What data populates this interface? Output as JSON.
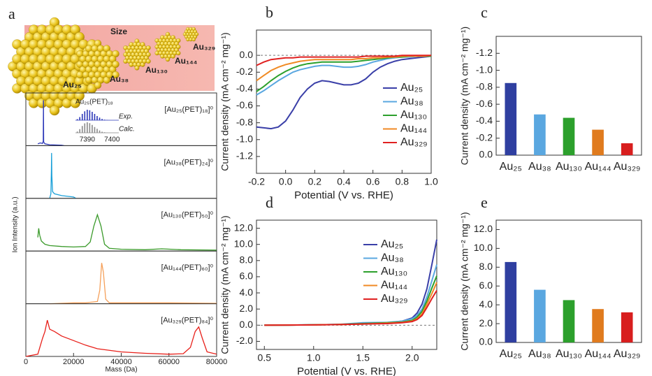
{
  "chart_data": [
    {
      "type": "spectra",
      "label": "a",
      "xlabel": "Mass (Da)",
      "ylabel": "Ion Intensity (a.u.)",
      "xlim": [
        0,
        80000
      ],
      "ylim": [
        0,
        1.1
      ],
      "xticks": [
        0,
        20000,
        40000,
        60000,
        80000
      ],
      "illustration": {
        "title": "Size",
        "labels": [
          "Au₂₅",
          "Au₃₈",
          "Au₁₃₀",
          "Au₁₄₄",
          "Au₃₂₉"
        ]
      },
      "inset": {
        "title": "Au₂₅(PET)₁₈",
        "xlim": [
          7383,
          7405
        ],
        "xticks": [
          7390,
          7400
        ],
        "x": [
          7386,
          7387,
          7388,
          7389,
          7390,
          7391,
          7392,
          7393,
          7394,
          7395,
          7396,
          7397,
          7398
        ],
        "series": [
          {
            "name": "Exp.",
            "color": "#2a36b8",
            "values": [
              0.1,
              0.3,
              0.6,
              0.85,
              1.0,
              0.95,
              0.8,
              0.6,
              0.4,
              0.25,
              0.12,
              0.05,
              0.02
            ]
          },
          {
            "name": "Calc.",
            "color": "#888888",
            "values": [
              0.12,
              0.35,
              0.65,
              0.9,
              1.0,
              0.92,
              0.75,
              0.55,
              0.38,
              0.22,
              0.1,
              0.05,
              0.02
            ]
          }
        ]
      },
      "panels": [
        {
          "name": "[Au₂₅(PET)₁₈]⁰",
          "color": "#2a36b8",
          "x": [
            5000,
            6000,
            7000,
            7300,
            7390,
            7480,
            8000,
            10000,
            15000,
            16000
          ],
          "values": [
            0.04,
            0.06,
            0.05,
            0.1,
            1.0,
            0.08,
            0.04,
            0.02,
            0.01,
            0
          ]
        },
        {
          "name": "[Au₃₈(PET)₂₄]⁰",
          "color": "#1aa0d8",
          "x": [
            10000,
            10500,
            10700,
            10780,
            10900,
            11200,
            12000,
            15000,
            20000,
            21000
          ],
          "values": [
            0,
            0.1,
            0.6,
            1.0,
            0.5,
            0.15,
            0.1,
            0.06,
            0.03,
            0
          ]
        },
        {
          "name": "[Au₁₃₀(PET)₅₀]⁰",
          "color": "#3a9a2a",
          "x": [
            5000,
            5400,
            5800,
            6500,
            8000,
            10000,
            15000,
            20000,
            25000,
            27000,
            28500,
            30000,
            31500,
            33000,
            35000,
            40000,
            50000,
            57000,
            65000,
            80000
          ],
          "values": [
            0.3,
            0.5,
            0.35,
            0.22,
            0.15,
            0.12,
            0.1,
            0.09,
            0.1,
            0.2,
            0.55,
            0.8,
            0.55,
            0.15,
            0.06,
            0.04,
            0.03,
            0.05,
            0.03,
            0.02
          ]
        },
        {
          "name": "[Au₁₄₄(PET)₆₀]⁰",
          "color": "#f5a05a",
          "x": [
            10000,
            20000,
            25000,
            30000,
            31000,
            31800,
            32500,
            33500,
            35000,
            40000,
            60000,
            80000
          ],
          "values": [
            0,
            0.02,
            0.02,
            0.05,
            0.3,
            0.9,
            0.7,
            0.1,
            0.02,
            0.02,
            0.02,
            0.01
          ]
        },
        {
          "name": "[Au₃₂₉(PET)₈₄]⁰",
          "color": "#e8201a",
          "x": [
            0,
            5000,
            7000,
            8000,
            9000,
            10000,
            12000,
            15000,
            20000,
            25000,
            30000,
            40000,
            50000,
            60000,
            66000,
            69000,
            71000,
            72500,
            74000,
            76000,
            80000
          ],
          "values": [
            0,
            0.05,
            0.4,
            0.55,
            0.8,
            0.6,
            0.55,
            0.45,
            0.35,
            0.25,
            0.17,
            0.1,
            0.07,
            0.05,
            0.06,
            0.2,
            0.55,
            0.65,
            0.4,
            0.1,
            0.05
          ]
        }
      ]
    },
    {
      "type": "line",
      "label": "b",
      "xlabel": "Potential (V vs. RHE)",
      "ylabel": "Current density (mA cm⁻² mg⁻¹)",
      "xlim": [
        -0.2,
        1.0
      ],
      "ylim": [
        -1.4,
        0.3
      ],
      "hline": 0,
      "legend": "lower right",
      "xticks": [
        -0.2,
        {
          "value": 0,
          "label": "0.0"
        },
        0.2,
        0.4,
        0.6,
        0.8,
        {
          "value": 1,
          "label": "1.0"
        }
      ],
      "yticks": [
        -1.2,
        {
          "value": -1,
          "label": "-1.0"
        },
        -0.8,
        -0.6,
        -0.4,
        -0.2,
        {
          "value": 0,
          "label": "0.0"
        }
      ],
      "x": [
        -0.2,
        -0.15,
        -0.1,
        -0.05,
        0,
        0.05,
        0.1,
        0.15,
        0.2,
        0.25,
        0.3,
        0.35,
        0.4,
        0.45,
        0.5,
        0.55,
        0.6,
        0.65,
        0.7,
        0.75,
        0.8,
        0.85,
        0.9,
        0.95,
        1.0
      ],
      "series": [
        {
          "name": "Au₂₅",
          "color": "#3a3fa8",
          "values": [
            -0.85,
            -0.86,
            -0.87,
            -0.85,
            -0.78,
            -0.65,
            -0.5,
            -0.4,
            -0.33,
            -0.3,
            -0.31,
            -0.33,
            -0.35,
            -0.35,
            -0.33,
            -0.28,
            -0.2,
            -0.14,
            -0.1,
            -0.07,
            -0.05,
            -0.04,
            -0.03,
            -0.02,
            -0.01
          ]
        },
        {
          "name": "Au₃₈",
          "color": "#5aa7e0",
          "values": [
            -0.47,
            -0.42,
            -0.36,
            -0.3,
            -0.25,
            -0.2,
            -0.17,
            -0.15,
            -0.13,
            -0.12,
            -0.12,
            -0.13,
            -0.14,
            -0.14,
            -0.13,
            -0.11,
            -0.08,
            -0.06,
            -0.04,
            -0.03,
            -0.02,
            -0.02,
            -0.01,
            -0.01,
            -0.01
          ]
        },
        {
          "name": "Au₁₃₀",
          "color": "#2ca02c",
          "values": [
            -0.43,
            -0.37,
            -0.3,
            -0.24,
            -0.19,
            -0.15,
            -0.12,
            -0.1,
            -0.09,
            -0.08,
            -0.08,
            -0.08,
            -0.08,
            -0.08,
            -0.07,
            -0.06,
            -0.05,
            -0.04,
            -0.03,
            -0.02,
            -0.02,
            -0.01,
            -0.01,
            -0.01,
            -0.01
          ]
        },
        {
          "name": "Au₁₄₄",
          "color": "#f08a24",
          "values": [
            -0.3,
            -0.24,
            -0.18,
            -0.14,
            -0.11,
            -0.09,
            -0.07,
            -0.06,
            -0.05,
            -0.05,
            -0.05,
            -0.05,
            -0.05,
            -0.05,
            -0.04,
            -0.04,
            -0.03,
            -0.03,
            -0.02,
            -0.02,
            -0.01,
            -0.01,
            -0.01,
            -0.01,
            0
          ]
        },
        {
          "name": "Au₃₂₉",
          "color": "#e02020",
          "values": [
            -0.12,
            -0.08,
            -0.05,
            -0.04,
            -0.03,
            -0.03,
            -0.02,
            -0.02,
            -0.02,
            -0.02,
            -0.02,
            -0.02,
            -0.02,
            -0.02,
            -0.02,
            -0.01,
            -0.01,
            -0.01,
            -0.01,
            -0.01,
            0,
            0,
            0,
            0,
            0
          ]
        }
      ]
    },
    {
      "type": "bar",
      "label": "c",
      "ylabel": "Current density (mA cm⁻² mg⁻¹)",
      "ylim": [
        0,
        -1.4
      ],
      "yticks": [
        {
          "value": 0,
          "label": "0.0"
        },
        -0.2,
        -0.4,
        -0.6,
        -0.8,
        {
          "value": -1,
          "label": "-1.0"
        },
        -1.2
      ],
      "categories": [
        "Au₂₅",
        "Au₃₈",
        "Au₁₃₀",
        "Au₁₄₄",
        "Au₃₂₉"
      ],
      "values": [
        -0.85,
        -0.48,
        -0.44,
        -0.3,
        -0.14
      ],
      "colors": [
        "#2f3fa0",
        "#5aa7e0",
        "#2ca02c",
        "#e07b1e",
        "#d81e1e"
      ]
    },
    {
      "type": "line",
      "label": "d",
      "xlabel": "Potential (V vs. RHE)",
      "ylabel": "Current density (mA cm⁻² mg⁻¹)",
      "xlim": [
        0.42,
        2.25
      ],
      "ylim": [
        -3,
        13
      ],
      "hline": 0,
      "legend": "upper right",
      "xticks": [
        0.5,
        {
          "value": 1,
          "label": "1.0"
        },
        1.5,
        {
          "value": 2,
          "label": "2.0"
        }
      ],
      "yticks": [
        {
          "value": -2,
          "label": "-2.0"
        },
        {
          "value": 0,
          "label": "0.0"
        },
        {
          "value": 2,
          "label": "2.0"
        },
        {
          "value": 4,
          "label": "4.0"
        },
        {
          "value": 6,
          "label": "6.0"
        },
        {
          "value": 8,
          "label": "8.0"
        },
        {
          "value": 10,
          "label": "10.0"
        },
        {
          "value": 12,
          "label": "12.0"
        }
      ],
      "x": [
        0.5,
        0.75,
        1.0,
        1.25,
        1.5,
        1.75,
        1.9,
        2.0,
        2.05,
        2.1,
        2.15,
        2.2,
        2.25
      ],
      "series": [
        {
          "name": "Au₂₅",
          "color": "#3a3fa8",
          "values": [
            0,
            0.02,
            0.05,
            0.1,
            0.2,
            0.3,
            0.5,
            0.9,
            1.5,
            2.6,
            4.5,
            7.5,
            10.6
          ]
        },
        {
          "name": "Au₃₈",
          "color": "#5aa7e0",
          "values": [
            0,
            0.02,
            0.05,
            0.1,
            0.3,
            0.35,
            0.5,
            0.8,
            1.2,
            2.0,
            3.5,
            5.5,
            7.5
          ]
        },
        {
          "name": "Au₁₃₀",
          "color": "#2ca02c",
          "values": [
            0,
            0.02,
            0.05,
            0.1,
            0.2,
            0.3,
            0.4,
            0.6,
            1.0,
            1.7,
            3.0,
            4.6,
            6.1
          ]
        },
        {
          "name": "Au₁₄₄",
          "color": "#f08a24",
          "values": [
            0,
            0.02,
            0.04,
            0.08,
            0.15,
            0.25,
            0.35,
            0.5,
            0.8,
            1.4,
            2.6,
            3.9,
            5.3
          ]
        },
        {
          "name": "Au₃₂₉",
          "color": "#e02020",
          "values": [
            0,
            0.02,
            0.04,
            0.08,
            0.15,
            0.2,
            0.3,
            0.45,
            0.7,
            1.2,
            2.2,
            3.3,
            4.3
          ]
        }
      ]
    },
    {
      "type": "bar",
      "label": "e",
      "ylabel": "Current density (mA cm⁻² mg⁻¹)",
      "ylim": [
        0,
        13
      ],
      "yticks": [
        {
          "value": 0,
          "label": "0.0"
        },
        {
          "value": 2,
          "label": "2.0"
        },
        {
          "value": 4,
          "label": "4.0"
        },
        {
          "value": 6,
          "label": "6.0"
        },
        {
          "value": 8,
          "label": "8.0"
        },
        {
          "value": 10,
          "label": "10.0"
        },
        {
          "value": 12,
          "label": "12.0"
        }
      ],
      "categories": [
        "Au₂₅",
        "Au₃₈",
        "Au₁₃₀",
        "Au₁₄₄",
        "Au₃₂₉"
      ],
      "values": [
        8.55,
        5.6,
        4.5,
        3.55,
        3.2
      ],
      "colors": [
        "#2f3fa0",
        "#5aa7e0",
        "#2ca02c",
        "#e07b1e",
        "#d81e1e"
      ]
    }
  ]
}
